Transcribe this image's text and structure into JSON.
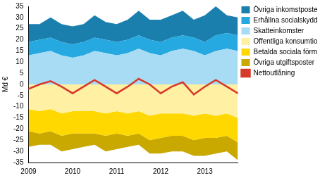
{
  "chart_data": {
    "type": "area",
    "y_label": "Md €",
    "categories": [
      "2009",
      null,
      null,
      null,
      "2010",
      null,
      null,
      null,
      "2011",
      null,
      null,
      null,
      "2012",
      null,
      null,
      null,
      "2013",
      null,
      null,
      null
    ],
    "series": [
      {
        "name": "Övriga inkomstposter",
        "type": "area",
        "color": "#1b7fae",
        "values": [
          8,
          7,
          9,
          8,
          8,
          8,
          10,
          8,
          8,
          9,
          11,
          9,
          10,
          10,
          11,
          8,
          12,
          13,
          8,
          8
        ]
      },
      {
        "name": "Erhållna socialskyddsavgifter",
        "type": "area",
        "color": "#25a9e0",
        "values": [
          6,
          6,
          6,
          6,
          6,
          6,
          6,
          6,
          6,
          6,
          6,
          6,
          6,
          6,
          6,
          6,
          6,
          7,
          7,
          7
        ]
      },
      {
        "name": "Skatteinkomster",
        "type": "area",
        "color": "#a8dcf4",
        "values": [
          13,
          14,
          15,
          13,
          12,
          13,
          15,
          14,
          13,
          14,
          16,
          14,
          13,
          15,
          16,
          15,
          13,
          15,
          16,
          15
        ]
      },
      {
        "name": "Offentliga konsumtionsutgifter",
        "type": "area",
        "color": "#fff0a3",
        "values": [
          -11,
          -12,
          -11,
          -13,
          -12,
          -12,
          -12,
          -13,
          -12,
          -13,
          -12,
          -14,
          -13,
          -13,
          -13,
          -14,
          -13,
          -14,
          -13,
          -15
        ]
      },
      {
        "name": "Betalda sociala förmåner",
        "type": "area",
        "color": "#ffd800",
        "values": [
          -10,
          -10,
          -10,
          -10,
          -10,
          -10,
          -10,
          -10,
          -10,
          -10,
          -10,
          -11,
          -11,
          -10,
          -10,
          -11,
          -11,
          -10,
          -10,
          -11
        ]
      },
      {
        "name": "Övriga utgiftsposter",
        "type": "area",
        "color": "#c9a800",
        "values": [
          -7,
          -5,
          -6,
          -7,
          -7,
          -6,
          -5,
          -7,
          -7,
          -5,
          -5,
          -6,
          -7,
          -7,
          -7,
          -7,
          -8,
          -7,
          -7,
          -8
        ]
      },
      {
        "name": "Nettoutlåning",
        "type": "line",
        "color": "#d63a2a",
        "values": [
          -2,
          0,
          1.5,
          -1,
          -4,
          -1,
          2,
          -1,
          -4,
          -1,
          2.5,
          0,
          -4,
          -1,
          1,
          -4.5,
          -1,
          2,
          -1,
          -4
        ]
      }
    ],
    "stacked": true,
    "ylim": [
      -35,
      35
    ],
    "yticks": [
      -35,
      -30,
      -25,
      -20,
      -15,
      -10,
      -5,
      0,
      5,
      10,
      15,
      20,
      25,
      30,
      35
    ],
    "grid": false,
    "legend": "right"
  }
}
